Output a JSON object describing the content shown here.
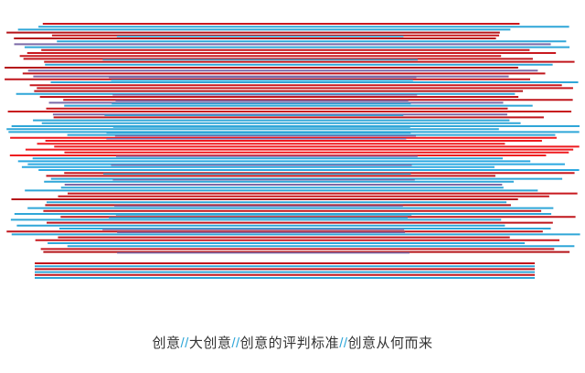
{
  "caption": {
    "parts": [
      "创意",
      "大创意",
      "创意的评判标准",
      "创意从何而来"
    ],
    "separator": "//"
  }
}
